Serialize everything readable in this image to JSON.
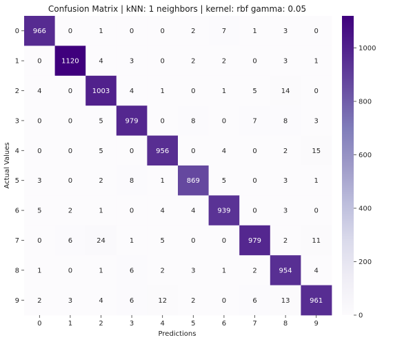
{
  "chart_data": {
    "type": "heatmap",
    "title": "Confusion Matrix | kNN: 1 neighbors | kernel: rbf gamma: 0.05",
    "xlabel": "Predictions",
    "ylabel": "Actual Values",
    "x_categories": [
      "0",
      "1",
      "2",
      "3",
      "4",
      "5",
      "6",
      "7",
      "8",
      "9"
    ],
    "y_categories": [
      "0",
      "1",
      "2",
      "3",
      "4",
      "5",
      "6",
      "7",
      "8",
      "9"
    ],
    "matrix": [
      [
        966,
        0,
        1,
        0,
        0,
        2,
        7,
        1,
        3,
        0
      ],
      [
        0,
        1120,
        4,
        3,
        0,
        2,
        2,
        0,
        3,
        1
      ],
      [
        4,
        0,
        1003,
        4,
        1,
        0,
        1,
        5,
        14,
        0
      ],
      [
        0,
        0,
        5,
        979,
        0,
        8,
        0,
        7,
        8,
        3
      ],
      [
        0,
        0,
        5,
        0,
        956,
        0,
        4,
        0,
        2,
        15
      ],
      [
        3,
        0,
        2,
        8,
        1,
        869,
        5,
        0,
        3,
        1
      ],
      [
        5,
        2,
        1,
        0,
        4,
        4,
        939,
        0,
        3,
        0
      ],
      [
        0,
        6,
        24,
        1,
        5,
        0,
        0,
        979,
        2,
        11
      ],
      [
        1,
        0,
        1,
        6,
        2,
        3,
        1,
        2,
        954,
        4
      ],
      [
        2,
        3,
        4,
        6,
        12,
        2,
        0,
        6,
        13,
        961
      ]
    ],
    "colorbar": {
      "min": 0,
      "max": 1120,
      "ticks": [
        0,
        200,
        400,
        600,
        800,
        1000
      ]
    },
    "colormap": {
      "low": "#fcfbfd",
      "mid": "#9e9ac8",
      "high": "#3f007d"
    }
  }
}
